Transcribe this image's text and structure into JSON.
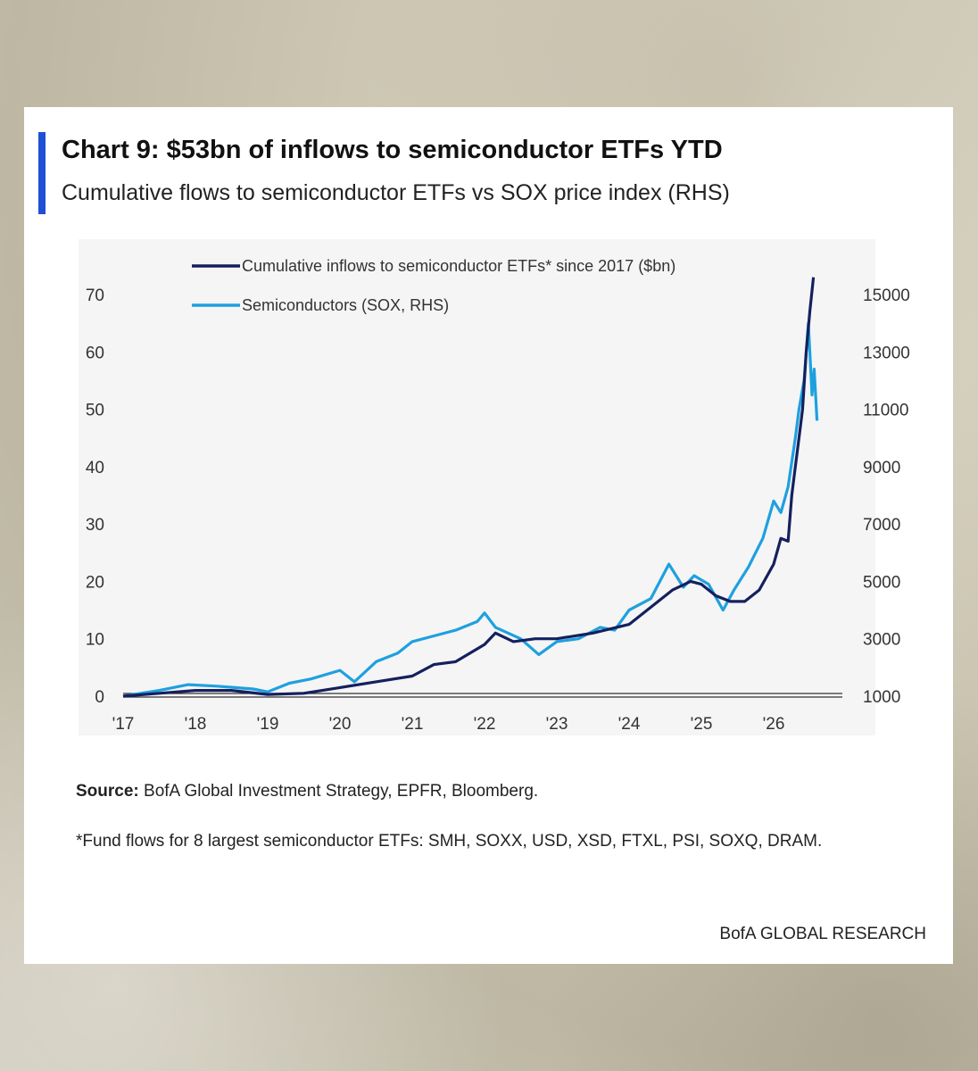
{
  "title": "Chart 9: $53bn of inflows to semiconductor ETFs YTD",
  "subtitle": "Cumulative flows to semiconductor ETFs vs SOX price index (RHS)",
  "source_label": "Source:",
  "source_text": "BofA Global Investment Strategy, EPFR, Bloomberg.",
  "footnote": "*Fund flows for 8 largest semiconductor ETFs: SMH, SOXX, USD, XSD, FTXL, PSI, SOXQ, DRAM.",
  "brand": "BofA GLOBAL RESEARCH",
  "colors": {
    "flows": "#14205e",
    "sox": "#1ea0df",
    "title_bar": "#1f4fd6",
    "plot_bg": "#f5f5f5"
  },
  "chart_data": {
    "type": "line",
    "title": "Chart 9: $53bn of inflows to semiconductor ETFs YTD",
    "subtitle": "Cumulative flows to semiconductor ETFs vs SOX price index (RHS)",
    "x_tick_labels": [
      "'17",
      "'18",
      "'19",
      "'20",
      "'21",
      "'22",
      "'23",
      "'24",
      "'25",
      "'26"
    ],
    "x_ticks": [
      2017,
      2018,
      2019,
      2020,
      2021,
      2022,
      2023,
      2024,
      2025,
      2026
    ],
    "xlim": [
      2017,
      2026.95
    ],
    "y_left": {
      "ticks": [
        0,
        10,
        20,
        30,
        40,
        50,
        60,
        70
      ],
      "lim": [
        0,
        70
      ]
    },
    "y_right": {
      "ticks": [
        1000,
        3000,
        5000,
        7000,
        9000,
        11000,
        13000,
        15000
      ],
      "lim": [
        1000,
        15000
      ]
    },
    "legend_position": "top",
    "series": [
      {
        "name": "Cumulative inflows to semiconductor ETFs* since 2017 ($bn)",
        "axis": "left",
        "color": "#14205e",
        "points": [
          [
            2017.0,
            0
          ],
          [
            2017.5,
            0.5
          ],
          [
            2018.0,
            1.0
          ],
          [
            2018.5,
            1.0
          ],
          [
            2019.0,
            0.3
          ],
          [
            2019.5,
            0.5
          ],
          [
            2020.0,
            1.5
          ],
          [
            2020.5,
            2.5
          ],
          [
            2021.0,
            3.5
          ],
          [
            2021.3,
            5.5
          ],
          [
            2021.6,
            6.0
          ],
          [
            2022.0,
            9.0
          ],
          [
            2022.15,
            11.0
          ],
          [
            2022.4,
            9.5
          ],
          [
            2022.7,
            10.0
          ],
          [
            2023.0,
            10.0
          ],
          [
            2023.5,
            11.0
          ],
          [
            2024.0,
            12.5
          ],
          [
            2024.3,
            15.5
          ],
          [
            2024.6,
            18.5
          ],
          [
            2024.85,
            20.0
          ],
          [
            2025.0,
            19.5
          ],
          [
            2025.2,
            17.5
          ],
          [
            2025.4,
            16.5
          ],
          [
            2025.6,
            16.5
          ],
          [
            2025.8,
            18.5
          ],
          [
            2026.0,
            23.0
          ],
          [
            2026.1,
            27.5
          ],
          [
            2026.2,
            27.0
          ],
          [
            2026.25,
            35.0
          ],
          [
            2026.3,
            40.0
          ],
          [
            2026.35,
            45.0
          ],
          [
            2026.4,
            50.0
          ],
          [
            2026.45,
            60.0
          ],
          [
            2026.5,
            67.0
          ],
          [
            2026.55,
            73.0
          ]
        ]
      },
      {
        "name": "Semiconductors (SOX, RHS)",
        "axis": "right",
        "color": "#1ea0df",
        "points": [
          [
            2017.0,
            1000
          ],
          [
            2017.5,
            1200
          ],
          [
            2017.9,
            1400
          ],
          [
            2018.3,
            1350
          ],
          [
            2018.8,
            1250
          ],
          [
            2019.0,
            1150
          ],
          [
            2019.3,
            1450
          ],
          [
            2019.6,
            1600
          ],
          [
            2020.0,
            1900
          ],
          [
            2020.2,
            1500
          ],
          [
            2020.5,
            2200
          ],
          [
            2020.8,
            2500
          ],
          [
            2021.0,
            2900
          ],
          [
            2021.3,
            3100
          ],
          [
            2021.6,
            3300
          ],
          [
            2021.9,
            3600
          ],
          [
            2022.0,
            3900
          ],
          [
            2022.15,
            3400
          ],
          [
            2022.5,
            3000
          ],
          [
            2022.75,
            2450
          ],
          [
            2023.0,
            2900
          ],
          [
            2023.3,
            3000
          ],
          [
            2023.6,
            3400
          ],
          [
            2023.8,
            3300
          ],
          [
            2024.0,
            4000
          ],
          [
            2024.3,
            4400
          ],
          [
            2024.55,
            5600
          ],
          [
            2024.75,
            4800
          ],
          [
            2024.9,
            5200
          ],
          [
            2025.1,
            4900
          ],
          [
            2025.3,
            4000
          ],
          [
            2025.45,
            4700
          ],
          [
            2025.65,
            5500
          ],
          [
            2025.85,
            6500
          ],
          [
            2026.0,
            7800
          ],
          [
            2026.1,
            7400
          ],
          [
            2026.2,
            8300
          ],
          [
            2026.3,
            10000
          ],
          [
            2026.35,
            11000
          ],
          [
            2026.42,
            12000
          ],
          [
            2026.48,
            14000
          ],
          [
            2026.53,
            11500
          ],
          [
            2026.56,
            12400
          ],
          [
            2026.6,
            10600
          ]
        ]
      }
    ]
  }
}
